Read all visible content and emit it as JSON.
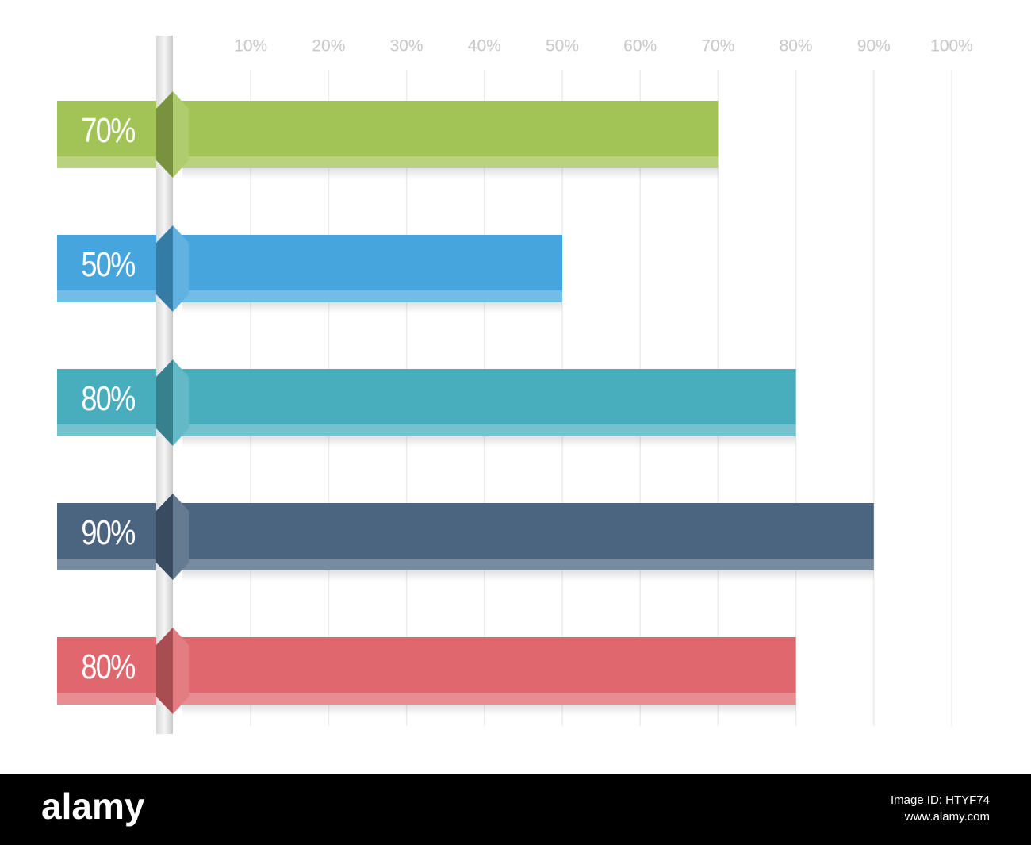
{
  "chart_data": {
    "type": "hbar",
    "values": [
      70,
      50,
      80,
      90,
      80
    ],
    "value_labels": [
      "70%",
      "50%",
      "80%",
      "90%",
      "80%"
    ],
    "colors": [
      "#a2c355",
      "#46a5dc",
      "#48adbd",
      "#4b647f",
      "#e0676d"
    ],
    "xlim": [
      0,
      100
    ],
    "xticks": [
      {
        "value": 10,
        "label": "10%"
      },
      {
        "value": 20,
        "label": "20%"
      },
      {
        "value": 30,
        "label": "30%"
      },
      {
        "value": 40,
        "label": "40%"
      },
      {
        "value": 50,
        "label": "50%"
      },
      {
        "value": 60,
        "label": "60%"
      },
      {
        "value": 70,
        "label": "70%"
      },
      {
        "value": 80,
        "label": "80%"
      },
      {
        "value": 90,
        "label": "90%"
      },
      {
        "value": 100,
        "label": "100%"
      }
    ],
    "grid": true
  },
  "footer": {
    "brand": "alamy",
    "image_id": "Image ID: HTYF74",
    "url": "www.alamy.com"
  }
}
